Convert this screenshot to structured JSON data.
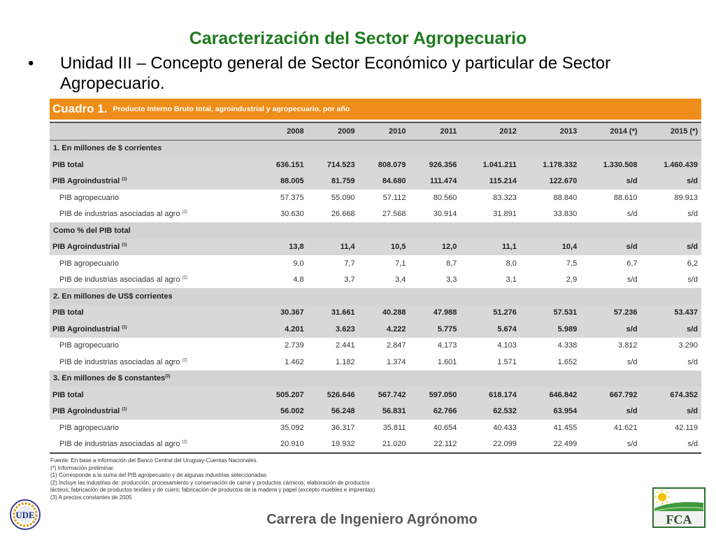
{
  "title": "Caracterización del Sector Agropecuario",
  "bullet": {
    "marker": "•",
    "text": "Unidad III – Concepto general de Sector Económico y particular de Sector Agropecuario."
  },
  "table": {
    "cuadro": "Cuadro 1.",
    "description": "Producto Interno Bruto total, agroindustrial y agropecuario, por año",
    "years": [
      "2008",
      "2009",
      "2010",
      "2011",
      "2012",
      "2013",
      "2014 (*)",
      "2015 (*)"
    ],
    "sections": [
      {
        "label": "1. En millones de $ corrientes",
        "rows": [
          {
            "label": "PIB total",
            "note": "",
            "type": "main",
            "values": [
              "636.151",
              "714.523",
              "808.079",
              "926.356",
              "1.041.211",
              "1.178.332",
              "1.330.508",
              "1.460.439"
            ]
          },
          {
            "label": "PIB Agroindustrial",
            "note": "(1)",
            "type": "main",
            "values": [
              "88.005",
              "81.759",
              "84.680",
              "111.474",
              "115.214",
              "122.670",
              "s/d",
              "s/d"
            ]
          },
          {
            "label": "PIB agropecuario",
            "note": "",
            "type": "sub",
            "values": [
              "57.375",
              "55.090",
              "57.112",
              "80.560",
              "83.323",
              "88.840",
              "88.610",
              "89.913"
            ]
          },
          {
            "label": "PIB de industrias asociadas al agro",
            "note": "(2)",
            "type": "sub",
            "values": [
              "30.630",
              "26.668",
              "27.568",
              "30.914",
              "31.891",
              "33.830",
              "s/d",
              "s/d"
            ]
          }
        ]
      },
      {
        "label": "Como % del PIB total",
        "rows": [
          {
            "label": "PIB Agroindustrial",
            "note": "(1)",
            "type": "main",
            "values": [
              "13,8",
              "11,4",
              "10,5",
              "12,0",
              "11,1",
              "10,4",
              "s/d",
              "s/d"
            ]
          },
          {
            "label": "PIB agropecuario",
            "note": "",
            "type": "sub",
            "values": [
              "9,0",
              "7,7",
              "7,1",
              "8,7",
              "8,0",
              "7,5",
              "6,7",
              "6,2"
            ]
          },
          {
            "label": "PIB de industrias asociadas al agro",
            "note": "(2)",
            "type": "sub",
            "values": [
              "4,8",
              "3,7",
              "3,4",
              "3,3",
              "3,1",
              "2,9",
              "s/d",
              "s/d"
            ]
          }
        ]
      },
      {
        "label": "2. En millones de US$ corrientes",
        "rows": [
          {
            "label": "PIB total",
            "note": "",
            "type": "main",
            "values": [
              "30.367",
              "31.661",
              "40.288",
              "47.988",
              "51.276",
              "57.531",
              "57.236",
              "53.437"
            ]
          },
          {
            "label": "PIB Agroindustrial",
            "note": "(1)",
            "type": "main",
            "values": [
              "4.201",
              "3.623",
              "4.222",
              "5.775",
              "5.674",
              "5.989",
              "s/d",
              "s/d"
            ]
          },
          {
            "label": "PIB agropecuario",
            "note": "",
            "type": "sub",
            "values": [
              "2.739",
              "2.441",
              "2.847",
              "4.173",
              "4.103",
              "4.338",
              "3.812",
              "3.290"
            ]
          },
          {
            "label": "PIB de industrias asociadas al agro",
            "note": "(2)",
            "type": "sub",
            "values": [
              "1.462",
              "1.182",
              "1.374",
              "1.601",
              "1.571",
              "1.652",
              "s/d",
              "s/d"
            ]
          }
        ]
      },
      {
        "label": "3. En millones de $ constantes",
        "label_note": "(3)",
        "rows": [
          {
            "label": "PIB total",
            "note": "",
            "type": "main",
            "values": [
              "505.207",
              "526.646",
              "567.742",
              "597.050",
              "618.174",
              "646.842",
              "667.792",
              "674.352"
            ]
          },
          {
            "label": "PIB Agroindustrial",
            "note": "(1)",
            "type": "main",
            "values": [
              "56.002",
              "56.248",
              "56.831",
              "62.766",
              "62.532",
              "63.954",
              "s/d",
              "s/d"
            ]
          },
          {
            "label": "PIB agropecuario",
            "note": "",
            "type": "sub",
            "values": [
              "35.092",
              "36.317",
              "35.811",
              "40.654",
              "40.433",
              "41.455",
              "41.621",
              "42.119"
            ]
          },
          {
            "label": "PIB de industrias asociadas al agro",
            "note": "(2)",
            "type": "sub",
            "values": [
              "20.910",
              "19.932",
              "21.020",
              "22.112",
              "22.099",
              "22.499",
              "s/d",
              "s/d"
            ]
          }
        ]
      }
    ]
  },
  "notes": [
    "Fuente: En base a información del Banco Central del Uruguay-Cuentas Nacionales.",
    "(*) Información preliminar.",
    "(1) Corresponde a la suma del PIB agropecuario y de algunas industrias seleccionadas",
    "(2) Incluye las industrias de: producción, procesamiento y conservación de carne y productos cárnicos; elaboración de productos",
    "lácteos; fabricación de productos textiles y de cuero; fabricación de productos de la madera y papel (excepto muebles e imprentas)",
    "(3) A precios constantes de 2005"
  ],
  "footer": "Carrera de Ingeniero Agrónomo",
  "logos": {
    "left": "UDE",
    "right": "FCA"
  },
  "colors": {
    "title": "#1f7a1f",
    "table_header": "#ef8d1a",
    "row_shade": "#d8d8d8",
    "footer": "#595959"
  }
}
